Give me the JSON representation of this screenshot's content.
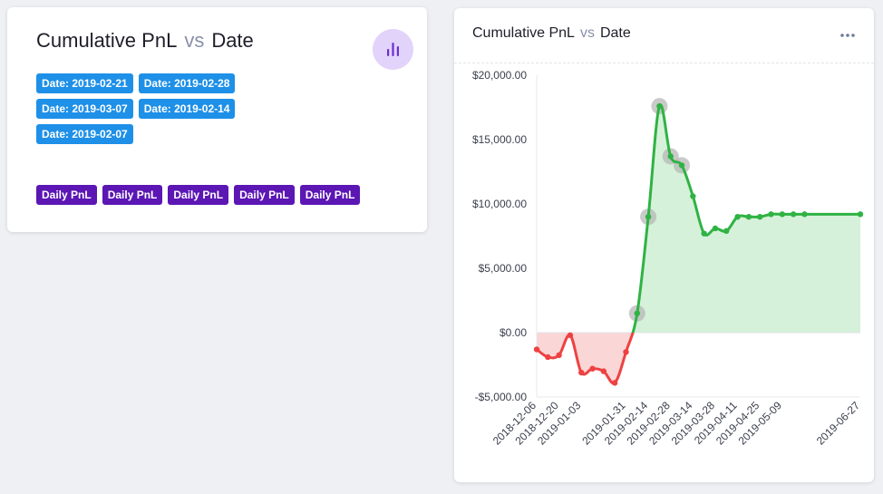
{
  "left_card": {
    "title_y": "Cumulative PnL",
    "title_vs": "vs",
    "title_x": "Date",
    "icon": "bar-chart-icon",
    "date_chips": [
      "Date: 2019-02-21",
      "Date: 2019-02-28",
      "Date: 2019-03-07",
      "Date: 2019-02-14",
      "Date: 2019-02-07"
    ],
    "pnl_chips": [
      "Daily PnL",
      "Daily PnL",
      "Daily PnL",
      "Daily PnL",
      "Daily PnL"
    ]
  },
  "right_card": {
    "title_y": "Cumulative PnL",
    "title_vs": "vs",
    "title_x": "Date",
    "menu_icon": "more-horizontal-icon"
  },
  "colors": {
    "positive": "#2fb344",
    "positive_fill": "#d6f1d9",
    "negative": "#ee4242",
    "negative_fill": "#fad6d6",
    "date_chip": "#1e90e8",
    "pnl_chip": "#5b16b4",
    "icon_bg": "#e2d3fb",
    "icon": "#6b2fd0",
    "highlight": "#b4b4b4"
  },
  "chart_data": {
    "type": "area",
    "title": "",
    "xlabel": "",
    "ylabel": "",
    "ylim": [
      -5000,
      20000
    ],
    "y_ticks": [
      -5000,
      0,
      5000,
      10000,
      15000,
      20000
    ],
    "y_tick_labels": [
      "-$5,000.00",
      "$0.00",
      "$5,000.00",
      "$10,000.00",
      "$15,000.00",
      "$20,000.00"
    ],
    "x_tick_labels": [
      "2018-12-06",
      "2018-12-20",
      "2019-01-03",
      "2019-01-31",
      "2019-02-14",
      "2019-02-28",
      "2019-03-14",
      "2019-03-28",
      "2019-04-11",
      "2019-04-25",
      "2019-05-09",
      "2019-06-27"
    ],
    "series": [
      {
        "x": [
          "2018-12-06",
          "2018-12-13",
          "2018-12-20",
          "2018-12-27",
          "2019-01-03",
          "2019-01-10",
          "2019-01-17",
          "2019-01-24",
          "2019-01-31",
          "2019-02-07",
          "2019-02-14",
          "2019-02-21",
          "2019-02-28",
          "2019-03-07",
          "2019-03-14",
          "2019-03-21",
          "2019-03-28",
          "2019-04-04",
          "2019-04-11",
          "2019-04-18",
          "2019-04-25",
          "2019-05-02",
          "2019-05-09",
          "2019-05-16",
          "2019-05-23",
          "2019-06-27"
        ],
        "values": [
          -1300,
          -1900,
          -1750,
          -200,
          -3100,
          -2800,
          -3000,
          -3900,
          -1500,
          1500,
          9000,
          17600,
          13700,
          13000,
          10600,
          7700,
          8100,
          7900,
          9000,
          9000,
          9000,
          9200,
          9200,
          9200,
          9200,
          9200
        ]
      }
    ],
    "highlighted_dates": [
      "2019-02-07",
      "2019-02-14",
      "2019-02-21",
      "2019-02-28",
      "2019-03-07"
    ],
    "grid": false
  }
}
